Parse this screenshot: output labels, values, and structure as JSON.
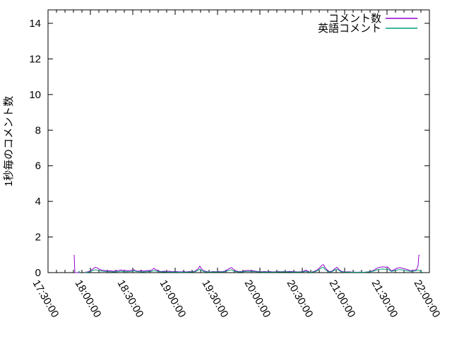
{
  "page": {
    "background": "#ffffff"
  },
  "chart_data": {
    "type": "line",
    "title": "",
    "xlabel": "",
    "ylabel": "1秒毎のコメント数",
    "x_axis": {
      "start_time": "17:30:00",
      "end_time": "22:00:00",
      "domain_minutes": [
        0,
        270
      ],
      "major_tick_interval_minutes": 30,
      "minor_tick_interval_minutes": 6,
      "tick_labels": [
        "17:30:00",
        "18:00:00",
        "18:30:00",
        "19:00:00",
        "19:30:00",
        "20:00:00",
        "20:30:00",
        "21:00:00",
        "21:30:00",
        "22:00:00"
      ],
      "tick_label_rotation_deg": 60
    },
    "y_axis": {
      "ylim": [
        0,
        14.76
      ],
      "major_ticks": [
        0,
        2,
        4,
        6,
        8,
        10,
        12,
        14
      ],
      "label": "1秒毎のコメント数"
    },
    "grid": false,
    "legend_position": "top-right-inside",
    "series": [
      {
        "name": "コメント数",
        "color": "#9400d3",
        "points": [
          [
            18.5,
            1
          ],
          [
            19,
            0
          ],
          [
            20,
            0
          ],
          [
            21.5,
            0
          ],
          [
            22.5,
            0
          ],
          [
            24,
            null
          ],
          [
            26,
            0.02
          ],
          [
            28,
            0.04
          ],
          [
            30,
            0.1
          ],
          [
            31.5,
            0.2
          ],
          [
            33.5,
            0.3
          ],
          [
            35,
            0.26
          ],
          [
            36.5,
            0.18
          ],
          [
            38,
            0.14
          ],
          [
            40,
            0.12
          ],
          [
            42,
            0.1
          ],
          [
            44,
            0.1
          ],
          [
            46,
            0.08
          ],
          [
            48,
            0.1
          ],
          [
            50,
            0.12
          ],
          [
            52,
            0.15
          ],
          [
            53,
            0.1
          ],
          [
            54,
            0.14
          ],
          [
            56,
            0.1
          ],
          [
            58,
            0.12
          ],
          [
            60,
            0.14
          ],
          [
            61,
            0.16
          ],
          [
            62,
            0.1
          ],
          [
            64,
            0.08
          ],
          [
            66,
            0.12
          ],
          [
            68,
            0.08
          ],
          [
            70,
            0.12
          ],
          [
            71,
            0.1
          ],
          [
            73,
            0.12
          ],
          [
            75,
            0.24
          ],
          [
            76,
            0.18
          ],
          [
            78,
            0.1
          ],
          [
            80,
            0.06
          ],
          [
            82,
            0.08
          ],
          [
            84,
            0.06
          ],
          [
            86,
            0.08
          ],
          [
            88,
            0.05
          ],
          [
            90,
            0.06
          ],
          [
            92,
            0.05
          ],
          [
            94,
            0.04
          ],
          [
            96,
            0.06
          ],
          [
            98,
            0.04
          ],
          [
            100,
            0.06
          ],
          [
            102,
            0.05
          ],
          [
            104,
            0.08
          ],
          [
            106,
            0.2
          ],
          [
            107.5,
            0.36
          ],
          [
            109,
            0.18
          ],
          [
            111,
            0.08
          ],
          [
            113,
            0.05
          ],
          [
            115,
            0.04
          ],
          [
            117,
            0.06
          ],
          [
            119,
            0.05
          ],
          [
            121,
            0.06
          ],
          [
            123,
            0.05
          ],
          [
            125,
            0.08
          ],
          [
            127,
            0.16
          ],
          [
            129,
            0.26
          ],
          [
            130,
            0.28
          ],
          [
            131,
            0.2
          ],
          [
            133,
            0.1
          ],
          [
            135,
            0.06
          ],
          [
            137,
            0.06
          ],
          [
            139,
            0.1
          ],
          [
            141,
            0.12
          ],
          [
            143,
            0.12
          ],
          [
            145,
            0.1
          ],
          [
            147,
            0.08
          ],
          [
            149,
            0.06
          ],
          [
            151,
            0.05
          ],
          [
            153,
            0.06
          ],
          [
            155,
            0.05
          ],
          [
            157,
            0.06
          ],
          [
            159,
            0.04
          ],
          [
            161,
            0.05
          ],
          [
            163,
            0.06
          ],
          [
            165,
            0.05
          ],
          [
            167,
            0.06
          ],
          [
            169,
            0.05
          ],
          [
            171,
            0.07
          ],
          [
            173,
            0.06
          ],
          [
            175,
            0.05
          ],
          [
            177,
            0.04
          ],
          [
            179,
            0.05
          ],
          [
            181,
            0.08
          ],
          [
            182.5,
            0.14
          ],
          [
            184,
            0.08
          ],
          [
            185,
            0.04
          ],
          [
            186,
            0.02
          ],
          [
            188,
            0.06
          ],
          [
            190,
            0.12
          ],
          [
            192,
            0.25
          ],
          [
            194,
            0.42
          ],
          [
            195,
            0.45
          ],
          [
            196,
            0.3
          ],
          [
            197.5,
            0.15
          ],
          [
            199,
            0.06
          ],
          [
            201,
            0.08
          ],
          [
            203,
            0.22
          ],
          [
            204.5,
            0.3
          ],
          [
            206,
            0.18
          ],
          [
            207.5,
            0.08
          ],
          [
            209,
            0.05
          ],
          [
            211,
            0.04
          ],
          [
            213,
            0.05
          ],
          [
            215,
            0.03
          ],
          [
            217,
            0.03
          ],
          [
            219,
            0.02
          ],
          [
            221,
            0.03
          ],
          [
            223,
            0.02
          ],
          [
            225,
            0.03
          ],
          [
            227,
            0.05
          ],
          [
            229,
            0.08
          ],
          [
            231,
            0.15
          ],
          [
            233,
            0.25
          ],
          [
            235,
            0.3
          ],
          [
            237,
            0.32
          ],
          [
            239,
            0.3
          ],
          [
            240,
            0.32
          ],
          [
            241,
            0.28
          ],
          [
            242,
            0.18
          ],
          [
            243,
            0.1
          ],
          [
            245,
            0.16
          ],
          [
            247,
            0.24
          ],
          [
            249,
            0.28
          ],
          [
            251,
            0.24
          ],
          [
            253,
            0.2
          ],
          [
            255,
            0.16
          ],
          [
            256,
            0.12
          ],
          [
            257,
            0.1
          ],
          [
            258,
            0.14
          ],
          [
            259,
            0.12
          ],
          [
            260,
            0.15
          ],
          [
            261,
            0.18
          ],
          [
            262,
            0.4
          ],
          [
            262.5,
            0.95
          ],
          [
            263,
            1.0
          ]
        ]
      },
      {
        "name": "英語コメント",
        "color": "#009e73",
        "points": [
          [
            21,
            0
          ],
          [
            22,
            0.06
          ],
          [
            23,
            0
          ],
          [
            24,
            null
          ],
          [
            26,
            0
          ],
          [
            28,
            0.02
          ],
          [
            30,
            0.06
          ],
          [
            31.5,
            0.12
          ],
          [
            33.5,
            0.16
          ],
          [
            35,
            0.14
          ],
          [
            37,
            0.1
          ],
          [
            39,
            0.08
          ],
          [
            41,
            0.06
          ],
          [
            44,
            0.05
          ],
          [
            47,
            0.04
          ],
          [
            50,
            0.06
          ],
          [
            52,
            0.08
          ],
          [
            54,
            0.06
          ],
          [
            56,
            0.05
          ],
          [
            58,
            0.06
          ],
          [
            60,
            0.08
          ],
          [
            61,
            0.1
          ],
          [
            63,
            0.06
          ],
          [
            65,
            0.05
          ],
          [
            67,
            0.04
          ],
          [
            69,
            0.05
          ],
          [
            71,
            0.06
          ],
          [
            73,
            0.06
          ],
          [
            75,
            0.12
          ],
          [
            77,
            0.08
          ],
          [
            79,
            0.05
          ],
          [
            81,
            0.04
          ],
          [
            83,
            0.04
          ],
          [
            85,
            0.03
          ],
          [
            88,
            0.03
          ],
          [
            91,
            0.03
          ],
          [
            94,
            0.02
          ],
          [
            97,
            0.03
          ],
          [
            100,
            0.03
          ],
          [
            102,
            0.04
          ],
          [
            104,
            0.05
          ],
          [
            106,
            0.12
          ],
          [
            107.5,
            0.2
          ],
          [
            109,
            0.1
          ],
          [
            111,
            0.05
          ],
          [
            113,
            0.03
          ],
          [
            116,
            0.03
          ],
          [
            119,
            0.04
          ],
          [
            122,
            0.03
          ],
          [
            125,
            0.05
          ],
          [
            127,
            0.1
          ],
          [
            129,
            0.15
          ],
          [
            130,
            0.16
          ],
          [
            131,
            0.1
          ],
          [
            133,
            0.06
          ],
          [
            135,
            0.04
          ],
          [
            137,
            0.04
          ],
          [
            139,
            0.06
          ],
          [
            141,
            0.07
          ],
          [
            143,
            0.07
          ],
          [
            145,
            0.06
          ],
          [
            147,
            0.05
          ],
          [
            149,
            0.04
          ],
          [
            152,
            0.03
          ],
          [
            155,
            0.03
          ],
          [
            158,
            0.03
          ],
          [
            161,
            0.03
          ],
          [
            164,
            0.04
          ],
          [
            167,
            0.04
          ],
          [
            170,
            0.04
          ],
          [
            173,
            0.03
          ],
          [
            176,
            0.03
          ],
          [
            179,
            0.03
          ],
          [
            181,
            0.05
          ],
          [
            182.5,
            0.08
          ],
          [
            184,
            0.04
          ],
          [
            186,
            0.02
          ],
          [
            188,
            0.04
          ],
          [
            190,
            0.08
          ],
          [
            192,
            0.18
          ],
          [
            194,
            0.28
          ],
          [
            195,
            0.3
          ],
          [
            196,
            0.2
          ],
          [
            197.5,
            0.1
          ],
          [
            199,
            0.04
          ],
          [
            201,
            0.05
          ],
          [
            203,
            0.15
          ],
          [
            204.5,
            0.2
          ],
          [
            206,
            0.12
          ],
          [
            207.5,
            0.05
          ],
          [
            209,
            0.03
          ],
          [
            212,
            0.03
          ],
          [
            215,
            0.02
          ],
          [
            218,
            0.02
          ],
          [
            221,
            0.02
          ],
          [
            224,
            0.02
          ],
          [
            227,
            0.04
          ],
          [
            229,
            0.06
          ],
          [
            231,
            0.1
          ],
          [
            233,
            0.16
          ],
          [
            235,
            0.19
          ],
          [
            237,
            0.2
          ],
          [
            239,
            0.19
          ],
          [
            240,
            0.2
          ],
          [
            241,
            0.17
          ],
          [
            242,
            0.12
          ],
          [
            243,
            0.07
          ],
          [
            245,
            0.1
          ],
          [
            247,
            0.15
          ],
          [
            249,
            0.17
          ],
          [
            251,
            0.15
          ],
          [
            253,
            0.12
          ],
          [
            255,
            0.09
          ],
          [
            257,
            0.07
          ],
          [
            258,
            0.08
          ],
          [
            259,
            0.09
          ],
          [
            260,
            0.1
          ],
          [
            261,
            0.12
          ],
          [
            262,
            0.14
          ],
          [
            263,
            0.12
          ],
          [
            264,
            0.05
          ],
          [
            265,
            0.01
          ]
        ]
      }
    ]
  },
  "legend": {
    "entries": [
      {
        "label": "コメント数",
        "color": "#9400d3"
      },
      {
        "label": "英語コメント",
        "color": "#009e73"
      }
    ]
  },
  "axis_colors": {
    "border": "#000000",
    "text": "#000000"
  }
}
